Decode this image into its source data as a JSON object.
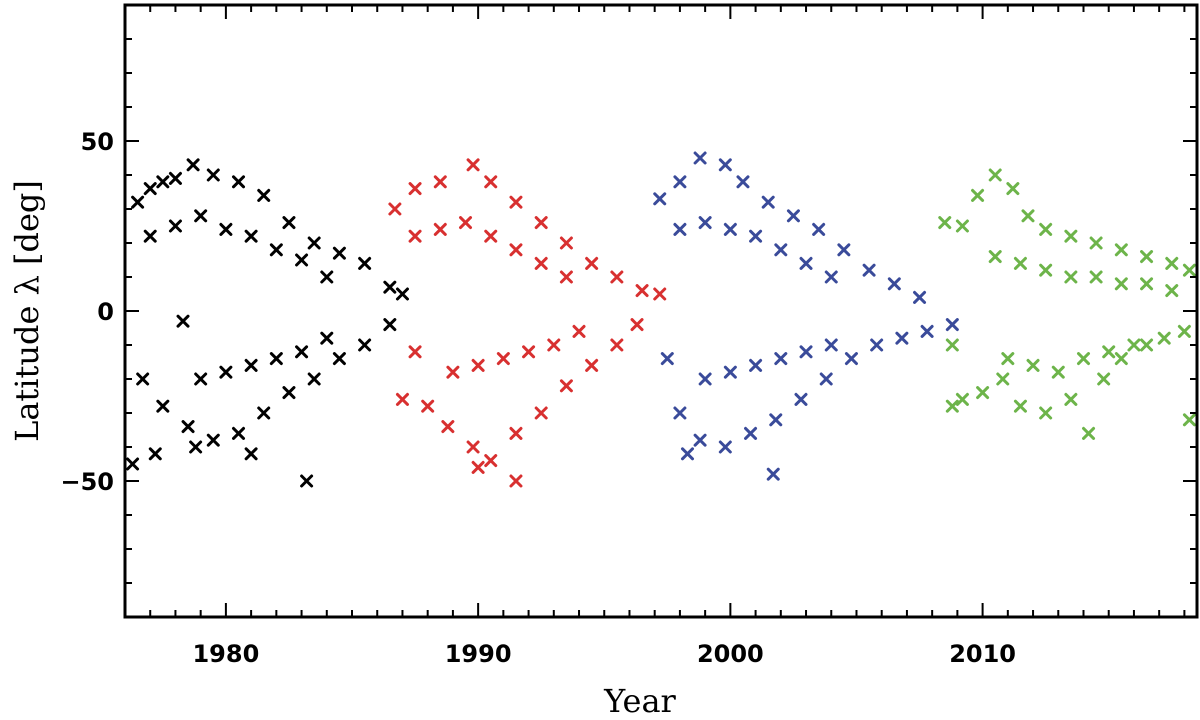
{
  "chart_data": {
    "type": "scatter",
    "xlabel": "Year",
    "ylabel": "Latitude λ [deg]",
    "xlim": [
      1976,
      2018.5
    ],
    "ylim": [
      -90,
      90
    ],
    "x_ticks": [
      1980,
      1990,
      2000,
      2010
    ],
    "x_tick_labels": [
      "1980",
      "1990",
      "2000",
      "2010"
    ],
    "y_ticks": [
      -50,
      0,
      50
    ],
    "y_tick_labels": [
      "−50",
      "0",
      "50"
    ],
    "marker": "x",
    "grid": false,
    "series": [
      {
        "color": "#000000",
        "values": [
          [
            1976.5,
            32
          ],
          [
            1977.0,
            36
          ],
          [
            1977.5,
            38
          ],
          [
            1978.0,
            39
          ],
          [
            1978.7,
            43
          ],
          [
            1979.5,
            40
          ],
          [
            1980.5,
            38
          ],
          [
            1981.5,
            34
          ],
          [
            1982.5,
            26
          ],
          [
            1983.5,
            20
          ],
          [
            1984.5,
            17
          ],
          [
            1985.5,
            14
          ],
          [
            1986.5,
            7
          ],
          [
            1987.0,
            5
          ],
          [
            1977.0,
            22
          ],
          [
            1978.0,
            25
          ],
          [
            1979.0,
            28
          ],
          [
            1980.0,
            24
          ],
          [
            1981.0,
            22
          ],
          [
            1982.0,
            18
          ],
          [
            1983.0,
            15
          ],
          [
            1984.0,
            10
          ],
          [
            1976.7,
            -20
          ],
          [
            1977.5,
            -28
          ],
          [
            1978.5,
            -34
          ],
          [
            1979.5,
            -38
          ],
          [
            1980.5,
            -36
          ],
          [
            1981.5,
            -30
          ],
          [
            1982.5,
            -24
          ],
          [
            1983.5,
            -20
          ],
          [
            1984.5,
            -14
          ],
          [
            1985.5,
            -10
          ],
          [
            1986.5,
            -4
          ],
          [
            1976.3,
            -45
          ],
          [
            1977.2,
            -42
          ],
          [
            1978.8,
            -40
          ],
          [
            1981.0,
            -42
          ],
          [
            1983.2,
            -50
          ],
          [
            1978.3,
            -3
          ],
          [
            1979.0,
            -20
          ],
          [
            1980.0,
            -18
          ],
          [
            1981.0,
            -16
          ],
          [
            1982.0,
            -14
          ],
          [
            1983.0,
            -12
          ],
          [
            1984.0,
            -8
          ]
        ]
      },
      {
        "color": "#d83030",
        "values": [
          [
            1986.7,
            30
          ],
          [
            1987.5,
            36
          ],
          [
            1988.5,
            38
          ],
          [
            1989.8,
            43
          ],
          [
            1990.5,
            38
          ],
          [
            1991.5,
            32
          ],
          [
            1992.5,
            26
          ],
          [
            1993.5,
            20
          ],
          [
            1994.5,
            14
          ],
          [
            1995.5,
            10
          ],
          [
            1996.5,
            6
          ],
          [
            1997.2,
            5
          ],
          [
            1987.5,
            22
          ],
          [
            1988.5,
            24
          ],
          [
            1989.5,
            26
          ],
          [
            1990.5,
            22
          ],
          [
            1991.5,
            18
          ],
          [
            1992.5,
            14
          ],
          [
            1993.5,
            10
          ],
          [
            1987.5,
            -12
          ],
          [
            1988.0,
            -28
          ],
          [
            1988.8,
            -34
          ],
          [
            1989.8,
            -40
          ],
          [
            1990.5,
            -44
          ],
          [
            1991.5,
            -36
          ],
          [
            1992.5,
            -30
          ],
          [
            1993.5,
            -22
          ],
          [
            1994.5,
            -16
          ],
          [
            1995.5,
            -10
          ],
          [
            1996.3,
            -4
          ],
          [
            1987.0,
            -26
          ],
          [
            1991.5,
            -50
          ],
          [
            1990.0,
            -46
          ],
          [
            1989.0,
            -18
          ],
          [
            1990.0,
            -16
          ],
          [
            1991.0,
            -14
          ],
          [
            1992.0,
            -12
          ],
          [
            1993.0,
            -10
          ],
          [
            1994.0,
            -6
          ]
        ]
      },
      {
        "color": "#3a4b9a",
        "values": [
          [
            1997.2,
            33
          ],
          [
            1998.0,
            38
          ],
          [
            1998.8,
            45
          ],
          [
            1999.8,
            43
          ],
          [
            2000.5,
            38
          ],
          [
            2001.5,
            32
          ],
          [
            2002.5,
            28
          ],
          [
            2003.5,
            24
          ],
          [
            2004.5,
            18
          ],
          [
            2005.5,
            12
          ],
          [
            2006.5,
            8
          ],
          [
            2007.5,
            4
          ],
          [
            1998.0,
            24
          ],
          [
            1999.0,
            26
          ],
          [
            2000.0,
            24
          ],
          [
            2001.0,
            22
          ],
          [
            2002.0,
            18
          ],
          [
            2003.0,
            14
          ],
          [
            2004.0,
            10
          ],
          [
            1997.5,
            -14
          ],
          [
            1998.0,
            -30
          ],
          [
            1998.8,
            -38
          ],
          [
            1999.8,
            -40
          ],
          [
            2000.8,
            -36
          ],
          [
            2001.8,
            -32
          ],
          [
            2002.8,
            -26
          ],
          [
            2003.8,
            -20
          ],
          [
            2004.8,
            -14
          ],
          [
            2005.8,
            -10
          ],
          [
            2006.8,
            -8
          ],
          [
            2007.8,
            -6
          ],
          [
            2008.8,
            -4
          ],
          [
            2001.7,
            -48
          ],
          [
            1998.3,
            -42
          ],
          [
            1999.0,
            -20
          ],
          [
            2000.0,
            -18
          ],
          [
            2001.0,
            -16
          ],
          [
            2002.0,
            -14
          ],
          [
            2003.0,
            -12
          ],
          [
            2004.0,
            -10
          ]
        ]
      },
      {
        "color": "#6db44a",
        "values": [
          [
            2008.5,
            26
          ],
          [
            2009.2,
            25
          ],
          [
            2009.8,
            34
          ],
          [
            2010.5,
            40
          ],
          [
            2011.2,
            36
          ],
          [
            2011.8,
            28
          ],
          [
            2012.5,
            24
          ],
          [
            2013.5,
            22
          ],
          [
            2014.5,
            20
          ],
          [
            2015.5,
            18
          ],
          [
            2016.5,
            16
          ],
          [
            2017.5,
            14
          ],
          [
            2018.2,
            12
          ],
          [
            2010.5,
            16
          ],
          [
            2011.5,
            14
          ],
          [
            2012.5,
            12
          ],
          [
            2013.5,
            10
          ],
          [
            2014.5,
            10
          ],
          [
            2015.5,
            8
          ],
          [
            2016.5,
            8
          ],
          [
            2017.5,
            6
          ],
          [
            2008.8,
            -10
          ],
          [
            2009.2,
            -26
          ],
          [
            2010.0,
            -24
          ],
          [
            2010.8,
            -20
          ],
          [
            2011.5,
            -28
          ],
          [
            2012.5,
            -30
          ],
          [
            2013.5,
            -26
          ],
          [
            2014.2,
            -36
          ],
          [
            2014.8,
            -20
          ],
          [
            2015.5,
            -14
          ],
          [
            2016.5,
            -10
          ],
          [
            2017.2,
            -8
          ],
          [
            2018.0,
            -6
          ],
          [
            2018.2,
            -32
          ],
          [
            2008.8,
            -28
          ],
          [
            2011.0,
            -14
          ],
          [
            2012.0,
            -16
          ],
          [
            2013.0,
            -18
          ],
          [
            2014.0,
            -14
          ],
          [
            2015.0,
            -12
          ],
          [
            2016.0,
            -10
          ]
        ]
      }
    ]
  }
}
